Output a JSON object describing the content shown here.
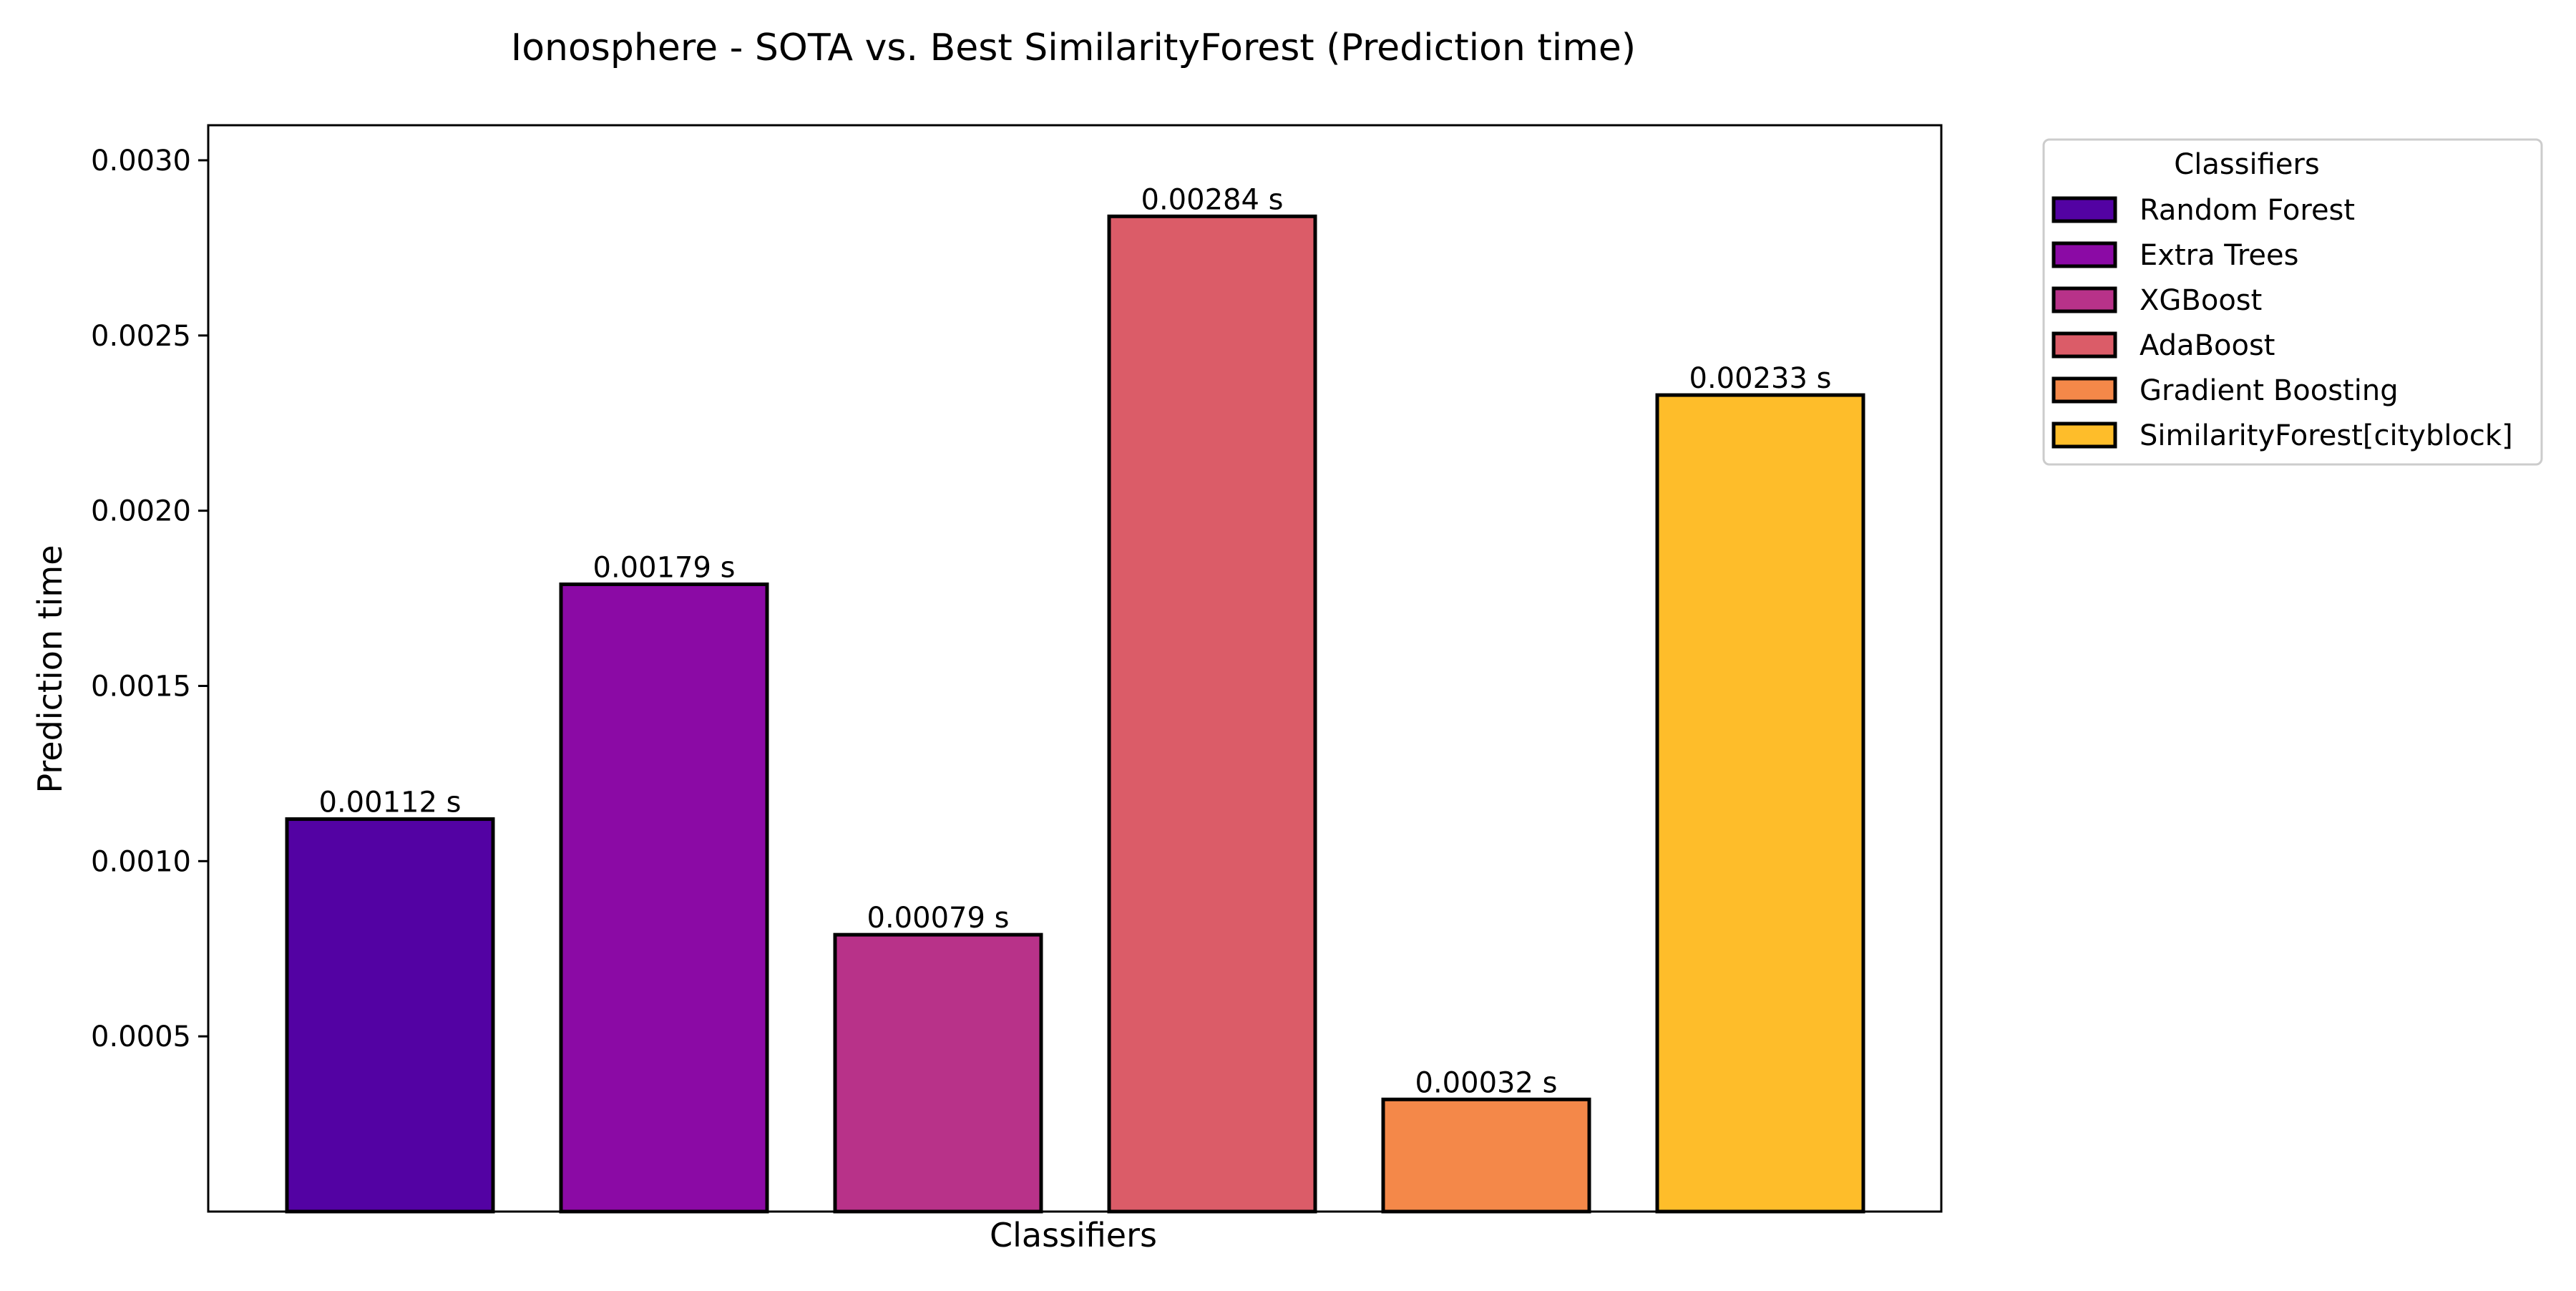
{
  "chart_data": {
    "type": "bar",
    "title": "Ionosphere - SOTA vs. Best SimilarityForest (Prediction time)",
    "xlabel": "Classifiers",
    "ylabel": "Prediction time",
    "ylim": [
      0.0,
      0.0031
    ],
    "yticks": [
      "0.0005",
      "0.0010",
      "0.0015",
      "0.0020",
      "0.0025",
      "0.0030"
    ],
    "ytick_values": [
      0.0005,
      0.001,
      0.0015,
      0.002,
      0.0025,
      0.003
    ],
    "categories": [
      "Random Forest",
      "Extra Trees",
      "XGBoost",
      "AdaBoost",
      "Gradient Boosting",
      "SimilarityForest[cityblock]"
    ],
    "values": [
      0.00112,
      0.00179,
      0.00079,
      0.00284,
      0.00032,
      0.00233
    ],
    "data_labels": [
      "0.00112 s",
      "0.00179 s",
      "0.00079 s",
      "0.00284 s",
      "0.00032 s",
      "0.00233 s"
    ],
    "colors": [
      "#5302a3",
      "#8b0aa5",
      "#b83289",
      "#db5c68",
      "#f48849",
      "#febd2a"
    ],
    "grid": false,
    "legend": {
      "title": "Classifiers",
      "placement": "outside-top-right",
      "entries": [
        "Random Forest",
        "Extra Trees",
        "XGBoost",
        "AdaBoost",
        "Gradient Boosting",
        "SimilarityForest[cityblock]"
      ]
    }
  }
}
